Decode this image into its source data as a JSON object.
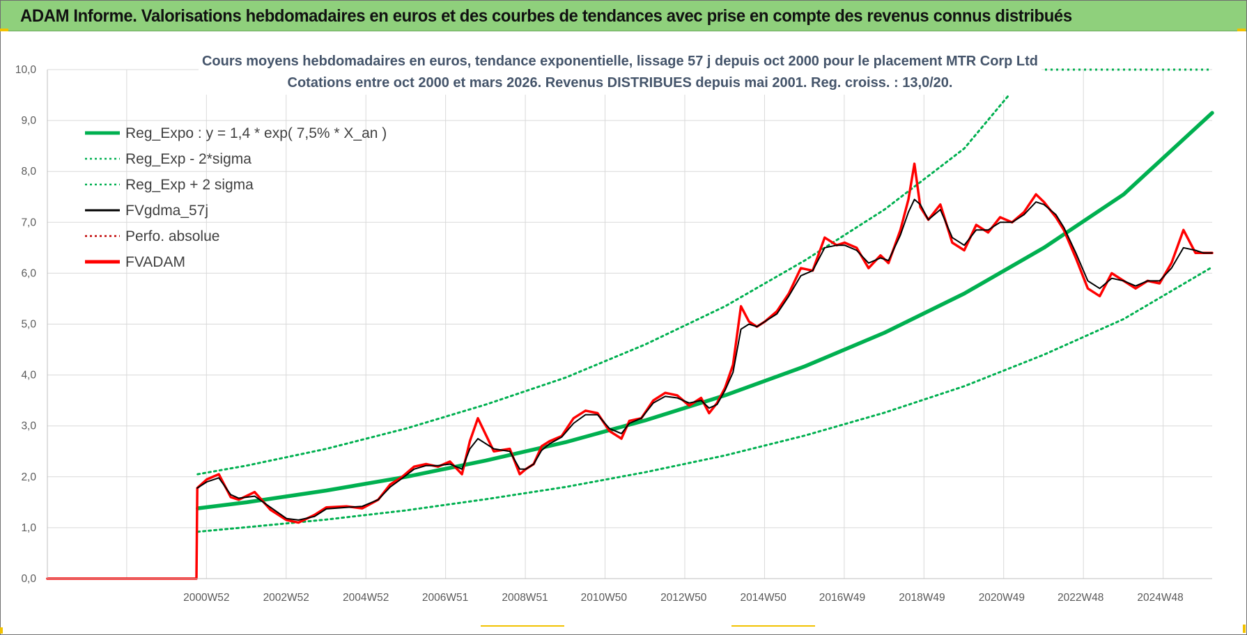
{
  "banner": {
    "title": "ADAM Informe. Valorisations hebdomadaires en euros et des courbes de tendances avec prise en compte des revenus connus distribués"
  },
  "colors": {
    "banner_bg": "#8fd07c",
    "trend": "#00b050",
    "price": "#ff0000",
    "smooth": "#000000",
    "perf": "#c00000",
    "grid": "#d9d9d9",
    "corner_marks": "#f2c200"
  },
  "chart_data": {
    "type": "line",
    "title_lines": [
      "Cours moyens hebdomadaires en euros, tendance exponentielle, lissage 57 j depuis oct 2000 pour le placement MTR Corp Ltd",
      "Cotations entre oct 2000 et mars 2026. Revenus DISTRIBUES depuis mai 2001. Reg. croiss. : 13,0/20."
    ],
    "x_axis": {
      "unit": "year",
      "range": [
        1997.0,
        2026.22
      ],
      "tick_labels": [
        {
          "label": "2000W52",
          "x": 2000.99
        },
        {
          "label": "2002W52",
          "x": 2002.99
        },
        {
          "label": "2004W52",
          "x": 2004.99
        },
        {
          "label": "2006W51",
          "x": 2006.98
        },
        {
          "label": "2008W51",
          "x": 2008.98
        },
        {
          "label": "2010W50",
          "x": 2010.96
        },
        {
          "label": "2012W50",
          "x": 2012.96
        },
        {
          "label": "2014W50",
          "x": 2014.96
        },
        {
          "label": "2016W49",
          "x": 2016.94
        },
        {
          "label": "2018W49",
          "x": 2018.94
        },
        {
          "label": "2020W49",
          "x": 2020.94
        },
        {
          "label": "2022W48",
          "x": 2022.92
        },
        {
          "label": "2024W48",
          "x": 2024.92
        }
      ]
    },
    "y_axis": {
      "range": [
        0,
        10
      ],
      "ticks": [
        0,
        1,
        2,
        3,
        4,
        5,
        6,
        7,
        8,
        9,
        10
      ],
      "tick_labels": [
        "0,0",
        "1,0",
        "2,0",
        "3,0",
        "4,0",
        "5,0",
        "6,0",
        "7,0",
        "8,0",
        "9,0",
        "10,0"
      ]
    },
    "grid": true,
    "legend": {
      "position": "top-left",
      "entries": [
        {
          "label": "Reg_Expo : y = 1,4 * exp( 7,5% *  X_an )",
          "color": "#00b050",
          "style": "solid-thick"
        },
        {
          "label": "Reg_Exp - 2*sigma",
          "color": "#00b050",
          "style": "dotted"
        },
        {
          "label": "Reg_Exp + 2 sigma",
          "color": "#00b050",
          "style": "dotted"
        },
        {
          "label": "FVgdma_57j",
          "color": "#000000",
          "style": "solid"
        },
        {
          "label": "Perfo. absolue",
          "color": "#c00000",
          "style": "dotted"
        },
        {
          "label": "FVADAM",
          "color": "#ff0000",
          "style": "solid-thick"
        }
      ]
    },
    "series": [
      {
        "name": "Reg_Expo : y = 1,4 * exp( 7,5% *  X_an )",
        "role": "trend",
        "x": [
          2000.77,
          2002,
          2004,
          2006,
          2008,
          2010,
          2012,
          2014,
          2016,
          2018,
          2020,
          2022,
          2024,
          2026.22
        ],
        "y": [
          1.38,
          1.5,
          1.73,
          2.0,
          2.32,
          2.68,
          3.11,
          3.6,
          4.17,
          4.83,
          5.6,
          6.5,
          7.55,
          9.15
        ]
      },
      {
        "name": "Reg_Exp + 2 sigma",
        "role": "upper",
        "x": [
          2000.77,
          2002,
          2004,
          2006,
          2008,
          2010,
          2012,
          2014,
          2016,
          2018,
          2020,
          2021.1
        ],
        "y": [
          2.05,
          2.22,
          2.55,
          2.95,
          3.42,
          3.95,
          4.6,
          5.35,
          6.25,
          7.25,
          8.45,
          9.48
        ]
      },
      {
        "name": "Reg_Exp - 2 sigma",
        "role": "lower",
        "x": [
          2000.77,
          2002,
          2004,
          2006,
          2008,
          2010,
          2012,
          2014,
          2016,
          2018,
          2020,
          2022,
          2024,
          2026.22
        ],
        "y": [
          0.92,
          1.01,
          1.16,
          1.34,
          1.56,
          1.8,
          2.09,
          2.42,
          2.81,
          3.26,
          3.78,
          4.4,
          5.1,
          6.12
        ]
      },
      {
        "name": "FVADAM",
        "role": "price",
        "x": [
          1997.0,
          2000.74,
          2000.76,
          2001.0,
          2001.3,
          2001.6,
          2001.8,
          2002.2,
          2002.6,
          2003.0,
          2003.3,
          2003.7,
          2004.0,
          2004.5,
          2004.9,
          2005.3,
          2005.6,
          2005.9,
          2006.2,
          2006.5,
          2006.8,
          2007.1,
          2007.4,
          2007.6,
          2007.8,
          2008.2,
          2008.6,
          2008.85,
          2009.0,
          2009.2,
          2009.4,
          2009.6,
          2009.9,
          2010.2,
          2010.5,
          2010.8,
          2011.1,
          2011.4,
          2011.6,
          2011.9,
          2012.2,
          2012.5,
          2012.8,
          2013.1,
          2013.4,
          2013.6,
          2013.8,
          2014.0,
          2014.2,
          2014.4,
          2014.6,
          2014.8,
          2015.0,
          2015.3,
          2015.6,
          2015.9,
          2016.2,
          2016.5,
          2016.8,
          2017.0,
          2017.3,
          2017.6,
          2017.9,
          2018.1,
          2018.4,
          2018.6,
          2018.75,
          2018.9,
          2019.1,
          2019.4,
          2019.7,
          2020.0,
          2020.3,
          2020.6,
          2020.9,
          2021.2,
          2021.5,
          2021.8,
          2022.0,
          2022.3,
          2022.5,
          2022.8,
          2023.1,
          2023.4,
          2023.7,
          2024.0,
          2024.3,
          2024.6,
          2024.9,
          2025.2,
          2025.5,
          2025.8,
          2026.0,
          2026.22
        ],
        "y": [
          0,
          0,
          1.78,
          1.95,
          2.05,
          1.6,
          1.55,
          1.7,
          1.35,
          1.15,
          1.1,
          1.25,
          1.4,
          1.42,
          1.38,
          1.55,
          1.85,
          2.0,
          2.2,
          2.25,
          2.2,
          2.3,
          2.05,
          2.7,
          3.15,
          2.5,
          2.55,
          2.05,
          2.15,
          2.25,
          2.6,
          2.7,
          2.8,
          3.15,
          3.3,
          3.25,
          2.9,
          2.75,
          3.1,
          3.15,
          3.5,
          3.65,
          3.6,
          3.4,
          3.55,
          3.25,
          3.45,
          3.75,
          4.2,
          5.35,
          5.05,
          4.95,
          5.05,
          5.25,
          5.6,
          6.1,
          6.05,
          6.7,
          6.55,
          6.6,
          6.5,
          6.1,
          6.35,
          6.2,
          6.85,
          7.45,
          8.15,
          7.3,
          7.05,
          7.35,
          6.6,
          6.45,
          6.95,
          6.8,
          7.1,
          7.0,
          7.2,
          7.55,
          7.4,
          7.1,
          6.85,
          6.3,
          5.7,
          5.55,
          6.0,
          5.85,
          5.7,
          5.85,
          5.8,
          6.2,
          6.85,
          6.4,
          6.4,
          6.4
        ]
      },
      {
        "name": "FVgdma_57j",
        "role": "smooth",
        "x": [
          2000.76,
          2001.0,
          2001.3,
          2001.6,
          2001.8,
          2002.2,
          2002.6,
          2003.0,
          2003.3,
          2003.7,
          2004.0,
          2004.5,
          2004.9,
          2005.3,
          2005.6,
          2005.9,
          2006.2,
          2006.5,
          2006.8,
          2007.1,
          2007.4,
          2007.6,
          2007.8,
          2008.2,
          2008.6,
          2008.85,
          2009.0,
          2009.2,
          2009.4,
          2009.6,
          2009.9,
          2010.2,
          2010.5,
          2010.8,
          2011.1,
          2011.4,
          2011.6,
          2011.9,
          2012.2,
          2012.5,
          2012.8,
          2013.1,
          2013.4,
          2013.6,
          2013.8,
          2014.0,
          2014.2,
          2014.4,
          2014.6,
          2014.8,
          2015.0,
          2015.3,
          2015.6,
          2015.9,
          2016.2,
          2016.5,
          2016.8,
          2017.0,
          2017.3,
          2017.6,
          2017.9,
          2018.1,
          2018.4,
          2018.6,
          2018.75,
          2018.9,
          2019.1,
          2019.4,
          2019.7,
          2020.0,
          2020.3,
          2020.6,
          2020.9,
          2021.2,
          2021.5,
          2021.8,
          2022.0,
          2022.3,
          2022.5,
          2022.8,
          2023.1,
          2023.4,
          2023.7,
          2024.0,
          2024.3,
          2024.6,
          2024.9,
          2025.2,
          2025.5,
          2025.8,
          2026.0,
          2026.22
        ],
        "y": [
          1.78,
          1.9,
          1.98,
          1.65,
          1.58,
          1.62,
          1.4,
          1.18,
          1.15,
          1.22,
          1.37,
          1.4,
          1.42,
          1.55,
          1.8,
          1.97,
          2.15,
          2.22,
          2.22,
          2.25,
          2.15,
          2.55,
          2.75,
          2.55,
          2.5,
          2.15,
          2.15,
          2.25,
          2.52,
          2.65,
          2.78,
          3.05,
          3.22,
          3.22,
          2.95,
          2.85,
          3.05,
          3.15,
          3.45,
          3.58,
          3.55,
          3.45,
          3.5,
          3.35,
          3.42,
          3.7,
          4.05,
          4.9,
          5.0,
          4.95,
          5.05,
          5.2,
          5.55,
          5.95,
          6.05,
          6.5,
          6.55,
          6.55,
          6.45,
          6.2,
          6.3,
          6.25,
          6.75,
          7.2,
          7.45,
          7.35,
          7.05,
          7.25,
          6.7,
          6.55,
          6.85,
          6.85,
          7.0,
          7.0,
          7.15,
          7.4,
          7.35,
          7.15,
          6.9,
          6.4,
          5.85,
          5.7,
          5.9,
          5.85,
          5.75,
          5.85,
          5.85,
          6.1,
          6.5,
          6.45,
          6.4,
          6.4
        ]
      }
    ]
  }
}
